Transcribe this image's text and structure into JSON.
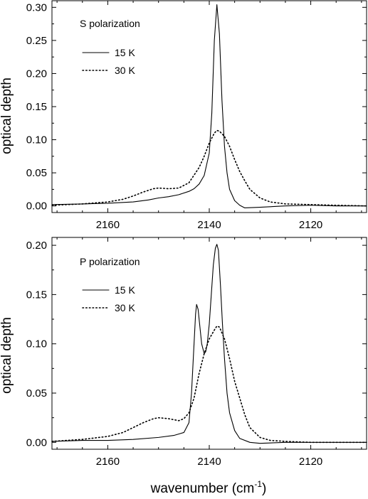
{
  "chart_data": [
    {
      "type": "line",
      "panel": "top",
      "annotation": "S polarization",
      "xlabel": "wavenumber (cm⁻¹)",
      "ylabel": "optical depth",
      "xlim": [
        2171,
        2109
      ],
      "ylim": [
        -0.01,
        0.31
      ],
      "x_reversed": true,
      "xticks": [
        2160,
        2140,
        2120
      ],
      "xtick_labels": [
        "2160",
        "2140",
        "2120"
      ],
      "yticks": [
        0.0,
        0.05,
        0.1,
        0.15,
        0.2,
        0.25,
        0.3
      ],
      "ytick_labels": [
        "0.00",
        "0.05",
        "0.10",
        "0.15",
        "0.20",
        "0.25",
        "0.30"
      ],
      "grid": false,
      "legend_position": "upper-left",
      "series": [
        {
          "name": "15 K",
          "style": "solid",
          "x": [
            2171,
            2165,
            2160,
            2155,
            2152,
            2150,
            2148,
            2146,
            2144,
            2143,
            2142,
            2141,
            2140,
            2139.5,
            2139,
            2138.5,
            2138,
            2137.5,
            2137,
            2136.5,
            2136,
            2135,
            2134,
            2133,
            2130,
            2125,
            2120,
            2115,
            2109
          ],
          "y": [
            0.002,
            0.003,
            0.004,
            0.006,
            0.009,
            0.012,
            0.014,
            0.017,
            0.022,
            0.026,
            0.033,
            0.046,
            0.08,
            0.14,
            0.25,
            0.304,
            0.26,
            0.16,
            0.09,
            0.05,
            0.025,
            0.008,
            0.001,
            -0.003,
            -0.002,
            0.0,
            0.001,
            0.0,
            0.0
          ]
        },
        {
          "name": "30 K",
          "style": "dotted",
          "x": [
            2171,
            2165,
            2160,
            2157,
            2155,
            2153,
            2151,
            2150,
            2148,
            2146,
            2144,
            2142,
            2141,
            2140,
            2139,
            2138.5,
            2138,
            2137,
            2136,
            2135,
            2134,
            2133,
            2132,
            2130,
            2128,
            2125,
            2120,
            2115,
            2109
          ],
          "y": [
            0.001,
            0.003,
            0.006,
            0.01,
            0.015,
            0.021,
            0.026,
            0.027,
            0.026,
            0.027,
            0.035,
            0.058,
            0.075,
            0.095,
            0.11,
            0.114,
            0.113,
            0.105,
            0.09,
            0.07,
            0.052,
            0.038,
            0.025,
            0.012,
            0.006,
            0.003,
            0.002,
            0.001,
            0.0
          ]
        }
      ]
    },
    {
      "type": "line",
      "panel": "bottom",
      "annotation": "P polarization",
      "xlabel": "wavenumber (cm⁻¹)",
      "ylabel": "optical depth",
      "xlim": [
        2171,
        2109
      ],
      "ylim": [
        -0.007,
        0.208
      ],
      "x_reversed": true,
      "xticks": [
        2160,
        2140,
        2120
      ],
      "xtick_labels": [
        "2160",
        "2140",
        "2120"
      ],
      "yticks": [
        0.0,
        0.05,
        0.1,
        0.15,
        0.2
      ],
      "ytick_labels": [
        "0.00",
        "0.05",
        "0.10",
        "0.15",
        "0.20"
      ],
      "grid": false,
      "legend_position": "upper-left",
      "series": [
        {
          "name": "15 K",
          "style": "solid",
          "x": [
            2171,
            2165,
            2160,
            2155,
            2150,
            2147,
            2145,
            2144,
            2143.5,
            2143,
            2142.7,
            2142.5,
            2142.2,
            2142,
            2141.5,
            2141,
            2140.7,
            2140.4,
            2140,
            2139.6,
            2139.2,
            2138.8,
            2138.5,
            2138.2,
            2137.8,
            2137.4,
            2137,
            2136.5,
            2136,
            2135,
            2134,
            2132,
            2130,
            2125,
            2120,
            2115,
            2109
          ],
          "y": [
            0.001,
            0.002,
            0.002,
            0.003,
            0.005,
            0.007,
            0.01,
            0.02,
            0.05,
            0.1,
            0.13,
            0.14,
            0.135,
            0.125,
            0.1,
            0.09,
            0.092,
            0.1,
            0.12,
            0.15,
            0.18,
            0.197,
            0.201,
            0.195,
            0.16,
            0.12,
            0.085,
            0.05,
            0.03,
            0.012,
            0.004,
            0.0,
            -0.001,
            0.0,
            0.0,
            0.0,
            0.0
          ]
        },
        {
          "name": "30 K",
          "style": "dotted",
          "x": [
            2171,
            2165,
            2160,
            2157,
            2155,
            2153,
            2151,
            2150,
            2148,
            2146,
            2145,
            2144,
            2143,
            2142,
            2141,
            2140,
            2139,
            2138.5,
            2138,
            2137,
            2136,
            2135,
            2134,
            2133,
            2132,
            2130,
            2128,
            2125,
            2120,
            2109
          ],
          "y": [
            0.001,
            0.003,
            0.006,
            0.01,
            0.015,
            0.02,
            0.024,
            0.025,
            0.024,
            0.022,
            0.024,
            0.03,
            0.045,
            0.07,
            0.09,
            0.105,
            0.114,
            0.118,
            0.117,
            0.105,
            0.085,
            0.062,
            0.045,
            0.028,
            0.015,
            0.005,
            0.002,
            0.001,
            0.0,
            0.0
          ]
        }
      ]
    }
  ]
}
